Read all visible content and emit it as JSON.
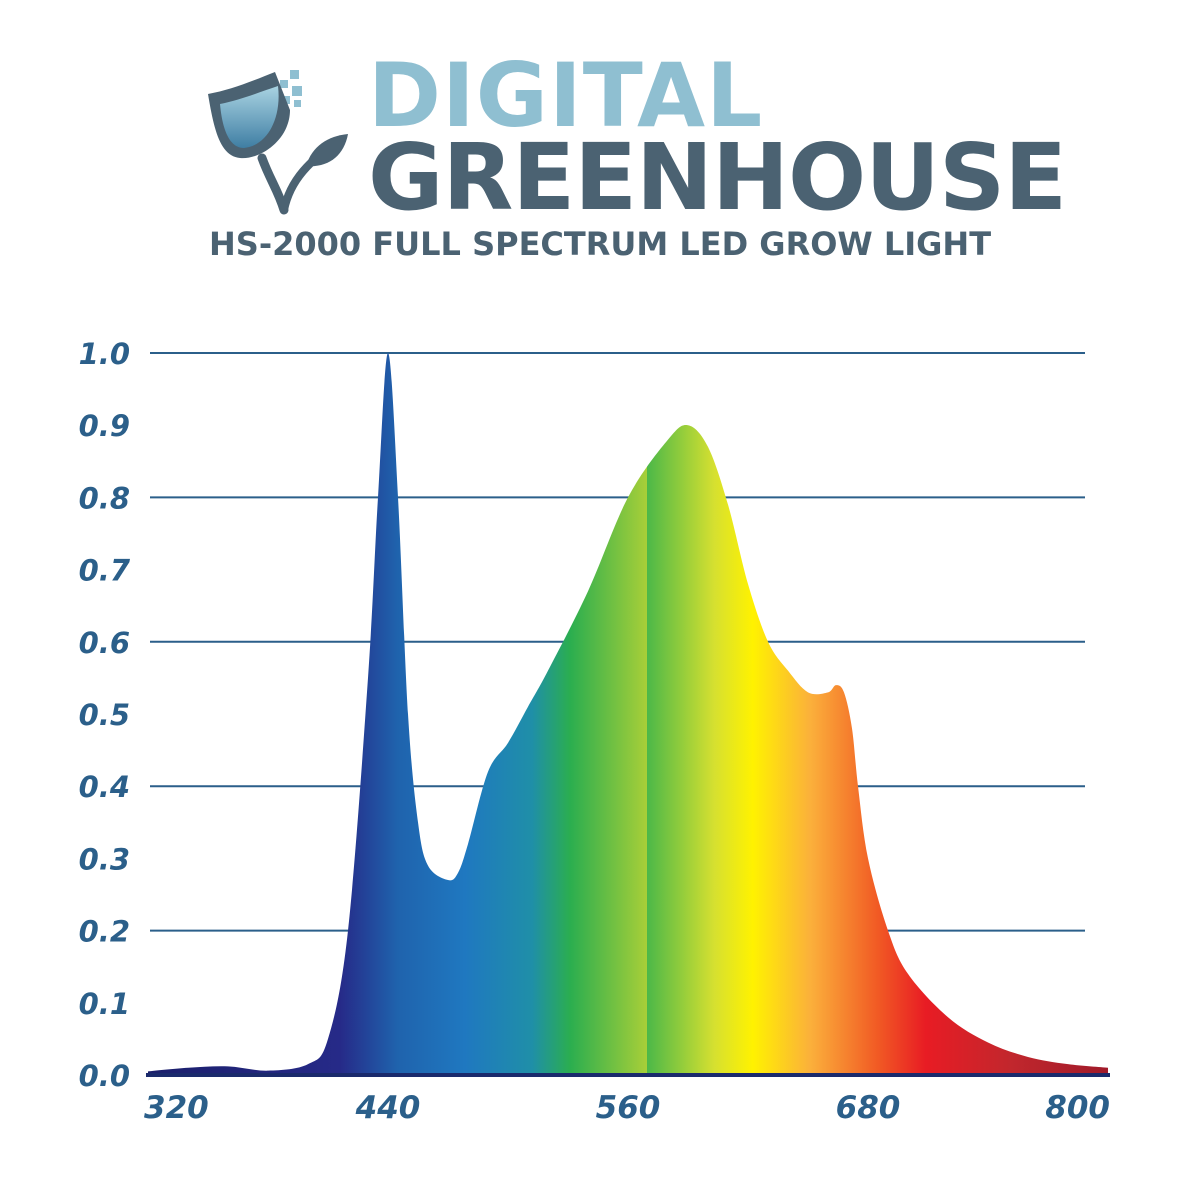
{
  "brand": {
    "line1": "DIGITAL",
    "line2": "GREENHOUSE",
    "colors": {
      "light": "#8fbfd1",
      "dark": "#4b6272"
    }
  },
  "icon_names": [
    "tulip-logo-icon",
    "leaf-icon",
    "pixel-squares-icon"
  ],
  "colors": {
    "grid": "#2b5f8a",
    "tick_text": "#2b5f8a",
    "axis": "#1a2a6c"
  },
  "chart_data": {
    "type": "area",
    "title": "HS-2000 FULL SPECTRUM LED GROW LIGHT",
    "xlabel": "",
    "ylabel": "",
    "xlim": [
      320,
      800
    ],
    "ylim": [
      0,
      1.0
    ],
    "grid": "horizontal",
    "x_ticks": [
      "320",
      "440",
      "560",
      "680",
      "800"
    ],
    "x_tick_values": [
      320,
      440,
      560,
      680,
      800
    ],
    "y_ticks": [
      "0.0",
      "0.1",
      "0.2",
      "0.3",
      "0.4",
      "0.5",
      "0.6",
      "0.7",
      "0.8",
      "0.9",
      "1.0"
    ],
    "y_tick_values": [
      0,
      0.1,
      0.2,
      0.3,
      0.4,
      0.5,
      0.6,
      0.7,
      0.8,
      0.9,
      1.0
    ],
    "fill": "wavelength spectrum gradient",
    "series": [
      {
        "x": [
          320,
          340,
          360,
          380,
          400,
          410,
          420,
          430,
          435,
          440,
          445,
          450,
          455,
          460,
          470,
          475,
          480,
          490,
          500,
          510,
          520,
          540,
          560,
          580,
          590,
          600,
          610,
          620,
          630,
          640,
          650,
          660,
          664,
          668,
          672,
          675,
          680,
          690,
          700,
          720,
          740,
          760,
          780,
          800
        ],
        "y": [
          0.005,
          0.01,
          0.012,
          0.006,
          0.015,
          0.05,
          0.2,
          0.55,
          0.8,
          1.0,
          0.8,
          0.5,
          0.35,
          0.29,
          0.27,
          0.28,
          0.32,
          0.42,
          0.46,
          0.51,
          0.56,
          0.67,
          0.8,
          0.88,
          0.9,
          0.87,
          0.79,
          0.68,
          0.6,
          0.56,
          0.53,
          0.53,
          0.54,
          0.53,
          0.48,
          0.4,
          0.3,
          0.2,
          0.14,
          0.08,
          0.045,
          0.025,
          0.015,
          0.01
        ]
      }
    ]
  }
}
